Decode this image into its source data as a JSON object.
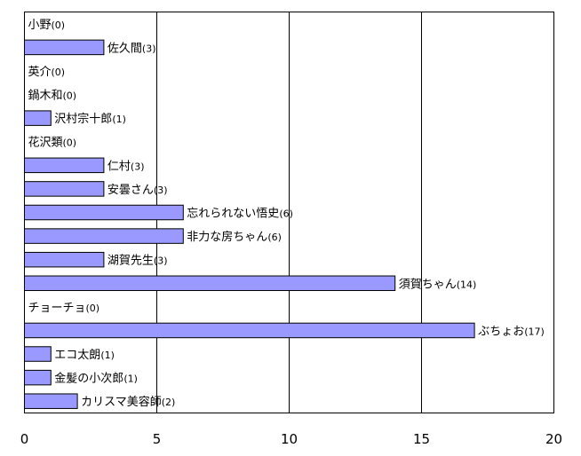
{
  "chart_data": {
    "type": "bar",
    "orientation": "horizontal",
    "title": "",
    "xlabel": "",
    "ylabel": "",
    "xlim": [
      0,
      20
    ],
    "x_ticks": [
      0,
      5,
      10,
      15,
      20
    ],
    "grid": "vertical",
    "legend": "none",
    "bar_color": "#9999ff",
    "categories": [
      {
        "name": "小野",
        "value": 0
      },
      {
        "name": "佐久間",
        "value": 3
      },
      {
        "name": "英介",
        "value": 0
      },
      {
        "name": "鍋木和",
        "value": 0
      },
      {
        "name": "沢村宗十郎",
        "value": 1
      },
      {
        "name": "花沢類",
        "value": 0
      },
      {
        "name": "仁村",
        "value": 3
      },
      {
        "name": "安曇さん",
        "value": 3
      },
      {
        "name": "忘れられない悟史",
        "value": 6
      },
      {
        "name": "非力な房ちゃん",
        "value": 6
      },
      {
        "name": "湖賀先生",
        "value": 3
      },
      {
        "name": "須賀ちゃん",
        "value": 14
      },
      {
        "name": "チョーチョ",
        "value": 0
      },
      {
        "name": "ぶちょお",
        "value": 17
      },
      {
        "name": "エコ太朗",
        "value": 1
      },
      {
        "name": "金髪の小次郎",
        "value": 1
      },
      {
        "name": "カリスマ美容師",
        "value": 2
      }
    ]
  }
}
